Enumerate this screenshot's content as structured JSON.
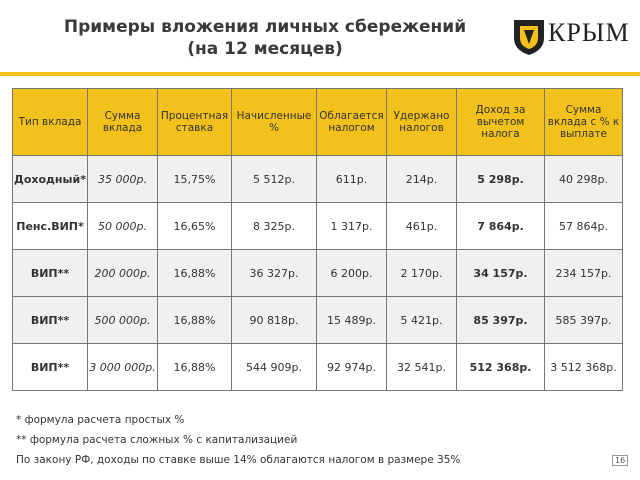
{
  "header": {
    "title": [
      "Примеры вложения личных сбережений",
      "(на 12 месяцев)"
    ]
  },
  "logo": {
    "text": "КРЫМ"
  },
  "table": {
    "columns": [
      "Тип вклада",
      "Сумма вклада",
      "Процентная ставка",
      "Начисленные %",
      "Облагается налогом",
      "Удержано налогов",
      "Доход за вычетом налога",
      "Сумма вклада с % к выплате"
    ],
    "rows": [
      [
        "Доходный*",
        "35 000р.",
        "15,75%",
        "5 512р.",
        "611р.",
        "214р.",
        "5 298р.",
        "40 298р."
      ],
      [
        "Пенс.ВИП*",
        "50 000р.",
        "16,65%",
        "8 325р.",
        "1 317р.",
        "461р.",
        "7 864р.",
        "57 864р."
      ],
      [
        "ВИП**",
        "200 000р.",
        "16,88%",
        "36 327р.",
        "6 200р.",
        "2 170р.",
        "34 157р.",
        "234 157р."
      ],
      [
        "ВИП**",
        "500 000р.",
        "16,88%",
        "90 818р.",
        "15 489р.",
        "5 421р.",
        "85 397р.",
        "585 397р."
      ],
      [
        "ВИП**",
        "3 000 000р.",
        "16,88%",
        "544 909р.",
        "92 974р.",
        "32 541р.",
        "512 368р.",
        "3 512 368р."
      ]
    ]
  },
  "footnotes": [
    "* формула расчета простых %",
    "** формула расчета сложных % с капитализацией",
    "По закону РФ, доходы по ставке выше 14% облагаются налогом в размере 35%"
  ],
  "page_number": "16"
}
